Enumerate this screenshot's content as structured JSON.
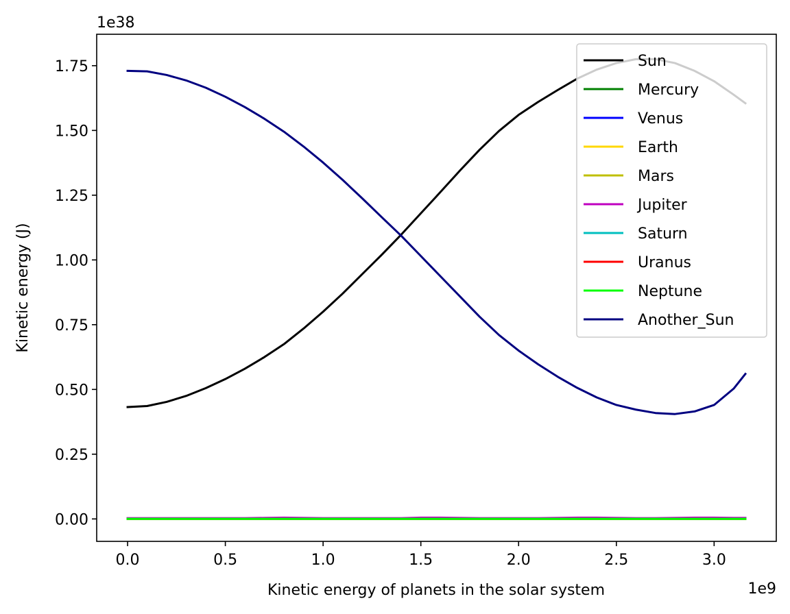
{
  "chart_data": {
    "type": "line",
    "title": "",
    "xlabel": "Kinetic energy of planets in the solar system",
    "ylabel": "Kinetic energy (J)",
    "x_offset_label": "1e9",
    "y_offset_label": "1e38",
    "x_scale": 1000000000,
    "y_scale": 1e+38,
    "xlim": [
      -0.158,
      3.318
    ],
    "ylim": [
      -0.0866,
      1.8713
    ],
    "xticks": [
      {
        "value": 0.0,
        "label": "0.0"
      },
      {
        "value": 0.5,
        "label": "0.5"
      },
      {
        "value": 1.0,
        "label": "1.0"
      },
      {
        "value": 1.5,
        "label": "1.5"
      },
      {
        "value": 2.0,
        "label": "2.0"
      },
      {
        "value": 2.5,
        "label": "2.5"
      },
      {
        "value": 3.0,
        "label": "3.0"
      }
    ],
    "yticks": [
      {
        "value": 0.0,
        "label": "0.00"
      },
      {
        "value": 0.25,
        "label": "0.25"
      },
      {
        "value": 0.5,
        "label": "0.50"
      },
      {
        "value": 0.75,
        "label": "0.75"
      },
      {
        "value": 1.0,
        "label": "1.00"
      },
      {
        "value": 1.25,
        "label": "1.25"
      },
      {
        "value": 1.5,
        "label": "1.50"
      },
      {
        "value": 1.75,
        "label": "1.75"
      }
    ],
    "grid": false,
    "legend_position": "top-right",
    "x": [
      0.0,
      0.1,
      0.2,
      0.3,
      0.4,
      0.5,
      0.6,
      0.7,
      0.8,
      0.9,
      1.0,
      1.1,
      1.2,
      1.3,
      1.4,
      1.5,
      1.6,
      1.7,
      1.8,
      1.9,
      2.0,
      2.1,
      2.2,
      2.3,
      2.4,
      2.5,
      2.6,
      2.7,
      2.8,
      2.9,
      3.0,
      3.1,
      3.16
    ],
    "series": [
      {
        "name": "Sun",
        "color": "#000000",
        "values": [
          0.432,
          0.436,
          0.452,
          0.475,
          0.505,
          0.54,
          0.58,
          0.625,
          0.675,
          0.735,
          0.8,
          0.87,
          0.945,
          1.02,
          1.098,
          1.18,
          1.262,
          1.345,
          1.425,
          1.498,
          1.56,
          1.61,
          1.656,
          1.7,
          1.735,
          1.76,
          1.775,
          1.775,
          1.76,
          1.73,
          1.69,
          1.638,
          1.605
        ]
      },
      {
        "name": "Mercury",
        "color": "#008000",
        "values": [
          0.002,
          0.002,
          0.002,
          0.002,
          0.002,
          0.002,
          0.002,
          0.002,
          0.002,
          0.002,
          0.002,
          0.002,
          0.002,
          0.002,
          0.002,
          0.002,
          0.002,
          0.002,
          0.002,
          0.002,
          0.002,
          0.002,
          0.002,
          0.002,
          0.002,
          0.002,
          0.002,
          0.002,
          0.002,
          0.002,
          0.002,
          0.002,
          0.002
        ]
      },
      {
        "name": "Venus",
        "color": "#0000ff",
        "values": [
          0.001,
          0.001,
          0.001,
          0.001,
          0.001,
          0.001,
          0.001,
          0.001,
          0.001,
          0.001,
          0.001,
          0.001,
          0.001,
          0.001,
          0.001,
          0.001,
          0.001,
          0.001,
          0.001,
          0.001,
          0.001,
          0.001,
          0.001,
          0.001,
          0.001,
          0.001,
          0.001,
          0.001,
          0.001,
          0.001,
          0.001,
          0.001,
          0.001
        ]
      },
      {
        "name": "Earth",
        "color": "#ffd700",
        "values": [
          0.001,
          0.001,
          0.001,
          0.001,
          0.001,
          0.001,
          0.001,
          0.001,
          0.001,
          0.001,
          0.001,
          0.001,
          0.001,
          0.001,
          0.001,
          0.001,
          0.001,
          0.001,
          0.001,
          0.001,
          0.001,
          0.001,
          0.001,
          0.001,
          0.001,
          0.001,
          0.001,
          0.001,
          0.001,
          0.001,
          0.001,
          0.001,
          0.001
        ]
      },
      {
        "name": "Mars",
        "color": "#bfbf00",
        "values": [
          0.0,
          0.0,
          0.0,
          0.0,
          0.0,
          0.0,
          0.0,
          0.0,
          0.0,
          0.0,
          0.0,
          0.0,
          0.0,
          0.0,
          0.0,
          0.0,
          0.0,
          0.0,
          0.0,
          0.0,
          0.0,
          0.0,
          0.0,
          0.0,
          0.0,
          0.0,
          0.0,
          0.0,
          0.0,
          0.0,
          0.0,
          0.0,
          0.0
        ]
      },
      {
        "name": "Jupiter",
        "color": "#bf00bf",
        "values": [
          0.003,
          0.003,
          0.003,
          0.003,
          0.003,
          0.003,
          0.003,
          0.004,
          0.005,
          0.004,
          0.003,
          0.003,
          0.003,
          0.003,
          0.003,
          0.005,
          0.005,
          0.004,
          0.003,
          0.003,
          0.003,
          0.003,
          0.004,
          0.005,
          0.005,
          0.004,
          0.003,
          0.003,
          0.004,
          0.005,
          0.005,
          0.004,
          0.004
        ]
      },
      {
        "name": "Saturn",
        "color": "#00bfbf",
        "values": [
          0.001,
          0.001,
          0.001,
          0.001,
          0.001,
          0.001,
          0.001,
          0.001,
          0.001,
          0.001,
          0.001,
          0.001,
          0.001,
          0.001,
          0.001,
          0.001,
          0.001,
          0.001,
          0.001,
          0.001,
          0.001,
          0.001,
          0.001,
          0.001,
          0.001,
          0.001,
          0.001,
          0.001,
          0.001,
          0.001,
          0.001,
          0.001,
          0.001
        ]
      },
      {
        "name": "Uranus",
        "color": "#ff0000",
        "values": [
          0.0,
          0.0,
          0.0,
          0.0,
          0.0,
          0.0,
          0.0,
          0.0,
          0.0,
          0.0,
          0.0,
          0.0,
          0.0,
          0.0,
          0.0,
          0.0,
          0.0,
          0.0,
          0.0,
          0.0,
          0.0,
          0.0,
          0.0,
          0.0,
          0.0,
          0.0,
          0.0,
          0.0,
          0.0,
          0.0,
          0.0,
          0.0,
          0.0
        ]
      },
      {
        "name": "Neptune",
        "color": "#00ff00",
        "values": [
          0.0,
          0.0,
          0.0,
          0.0,
          0.0,
          0.0,
          0.0,
          0.0,
          0.0,
          0.0,
          0.0,
          0.0,
          0.0,
          0.0,
          0.0,
          0.0,
          0.0,
          0.0,
          0.0,
          0.0,
          0.0,
          0.0,
          0.0,
          0.0,
          0.0,
          0.0,
          0.0,
          0.0,
          0.0,
          0.0,
          0.0,
          0.0,
          0.0
        ]
      },
      {
        "name": "Another_Sun",
        "color": "#000080",
        "values": [
          1.73,
          1.728,
          1.714,
          1.693,
          1.665,
          1.63,
          1.59,
          1.545,
          1.495,
          1.438,
          1.376,
          1.309,
          1.238,
          1.165,
          1.093,
          1.015,
          0.937,
          0.859,
          0.781,
          0.71,
          0.65,
          0.597,
          0.549,
          0.506,
          0.469,
          0.44,
          0.422,
          0.409,
          0.405,
          0.415,
          0.44,
          0.503,
          0.56
        ]
      }
    ]
  }
}
